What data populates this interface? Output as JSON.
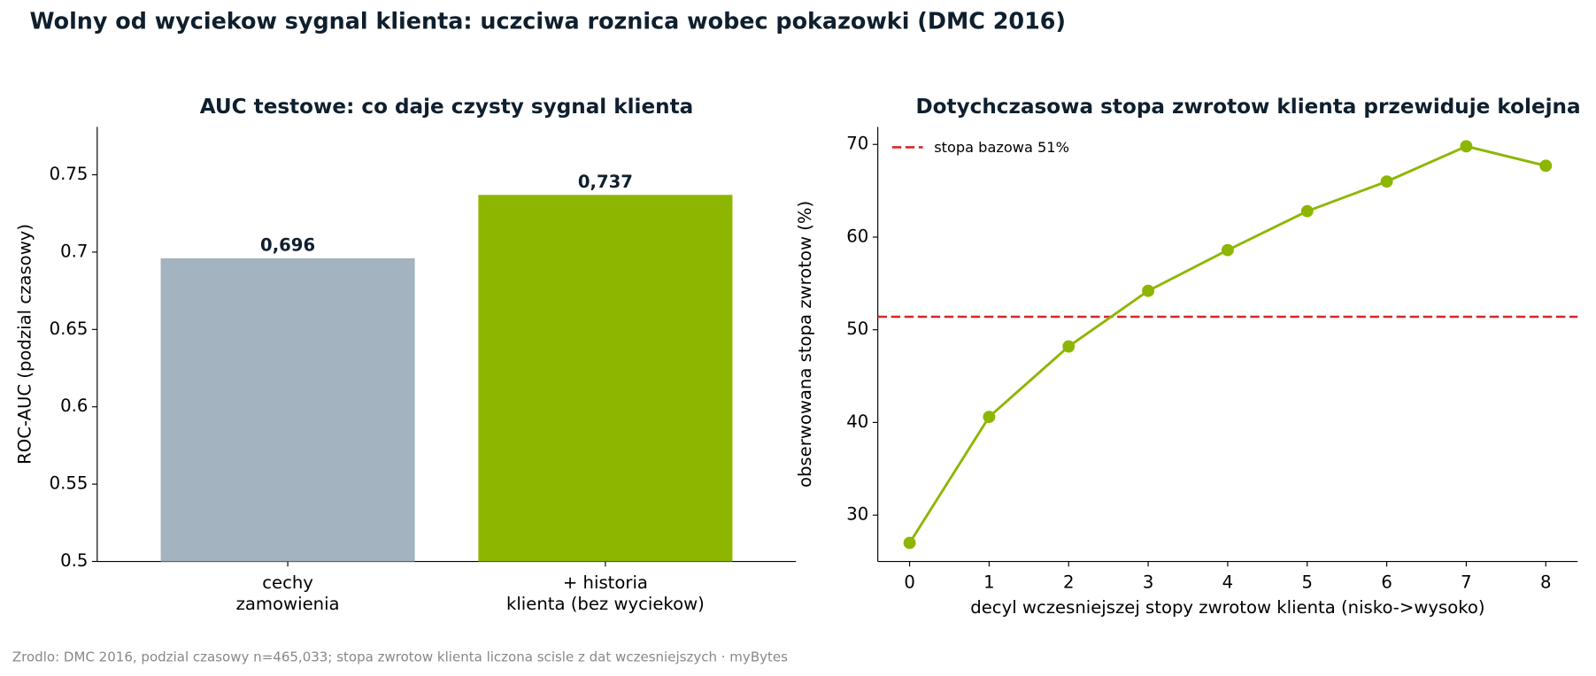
{
  "title": "Wolny od wyciekow sygnal klienta: uczciwa roznica wobec pokazowki (DMC 2016)",
  "source": "Zrodlo: DMC 2016, podzial czasowy n=465,033; stopa zwrotow klienta liczona scisle z dat wczesniejszych · myBytes",
  "chart_data": [
    {
      "type": "bar",
      "title": "AUC testowe: co daje czysty sygnal klienta",
      "ylabel": "ROC-AUC (podzial czasowy)",
      "categories": [
        [
          "cechy",
          "zamowienia"
        ],
        [
          "+ historia",
          "klienta (bez wyciekow)"
        ]
      ],
      "values": [
        0.696,
        0.737
      ],
      "value_labels": [
        "0,696",
        "0,737"
      ],
      "colors": [
        "#a3b3bf",
        "#8db600"
      ],
      "ylim": [
        0.5,
        0.781
      ],
      "yticks": [
        0.5,
        0.55,
        0.6,
        0.65,
        0.7,
        0.75
      ]
    },
    {
      "type": "line",
      "title": "Dotychczasowa stopa zwrotow klienta przewiduje kolejna",
      "xlabel": "decyl wczesniejszej stopy zwrotow klienta (nisko->wysoko)",
      "ylabel": "obserwowana stopa zwrotow (%)",
      "x": [
        0,
        1,
        2,
        3,
        4,
        5,
        6,
        7,
        8
      ],
      "series": [
        {
          "color": "#8db600",
          "values": [
            27.0,
            40.6,
            48.2,
            54.2,
            58.6,
            62.8,
            66.0,
            69.8,
            67.7
          ]
        }
      ],
      "hline": {
        "value": 51.4,
        "label": "stopa bazowa 51%",
        "color": "#d62728"
      },
      "xlim": [
        -0.4,
        8.4
      ],
      "xticks": [
        0,
        1,
        2,
        3,
        4,
        5,
        6,
        7,
        8
      ],
      "ylim": [
        25,
        71.9
      ],
      "yticks": [
        30,
        40,
        50,
        60,
        70
      ],
      "legend": "upper left"
    }
  ]
}
